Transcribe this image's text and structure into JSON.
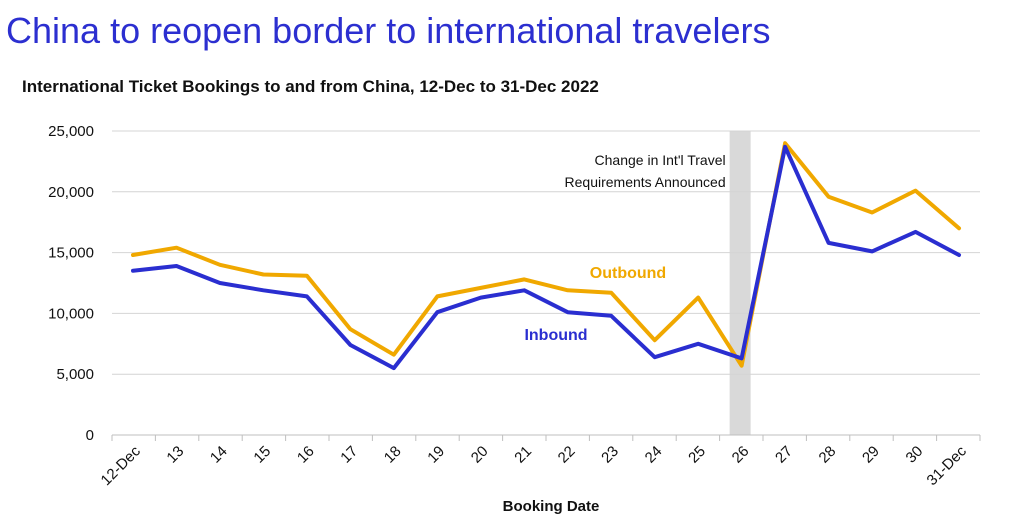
{
  "headline": "China to reopen border to international travelers",
  "chart_data": {
    "type": "line",
    "title": "International Ticket Bookings to and from China, 12-Dec to 31-Dec 2022",
    "xlabel": "Booking Date",
    "ylabel": "",
    "categories": [
      "12-Dec",
      "13",
      "14",
      "15",
      "16",
      "17",
      "18",
      "19",
      "20",
      "21",
      "22",
      "23",
      "24",
      "25",
      "26",
      "27",
      "28",
      "29",
      "30",
      "31-Dec"
    ],
    "ylim": [
      0,
      25000
    ],
    "yticks": [
      0,
      5000,
      10000,
      15000,
      20000,
      25000
    ],
    "ytick_labels": [
      "0",
      "5,000",
      "10,000",
      "15,000",
      "20,000",
      "25,000"
    ],
    "grid": true,
    "series": [
      {
        "name": "Outbound",
        "color": "#f0a800",
        "values": [
          14800,
          15400,
          14000,
          13200,
          13100,
          8700,
          6600,
          11400,
          12100,
          12800,
          11900,
          11700,
          7800,
          11300,
          5700,
          24000,
          19600,
          18300,
          20100,
          17000
        ]
      },
      {
        "name": "Inbound",
        "color": "#2a2ed0",
        "values": [
          13500,
          13900,
          12500,
          11900,
          11400,
          7400,
          5500,
          10100,
          11300,
          11900,
          10100,
          9800,
          6400,
          7500,
          6300,
          23700,
          15800,
          15100,
          16700,
          14800
        ]
      }
    ],
    "annotations": [
      {
        "type": "shaded-band",
        "at_category": "26",
        "color": "#d9d9d9",
        "label_lines": [
          "Change in Int'l Travel",
          "Requirements Announced"
        ]
      }
    ]
  }
}
